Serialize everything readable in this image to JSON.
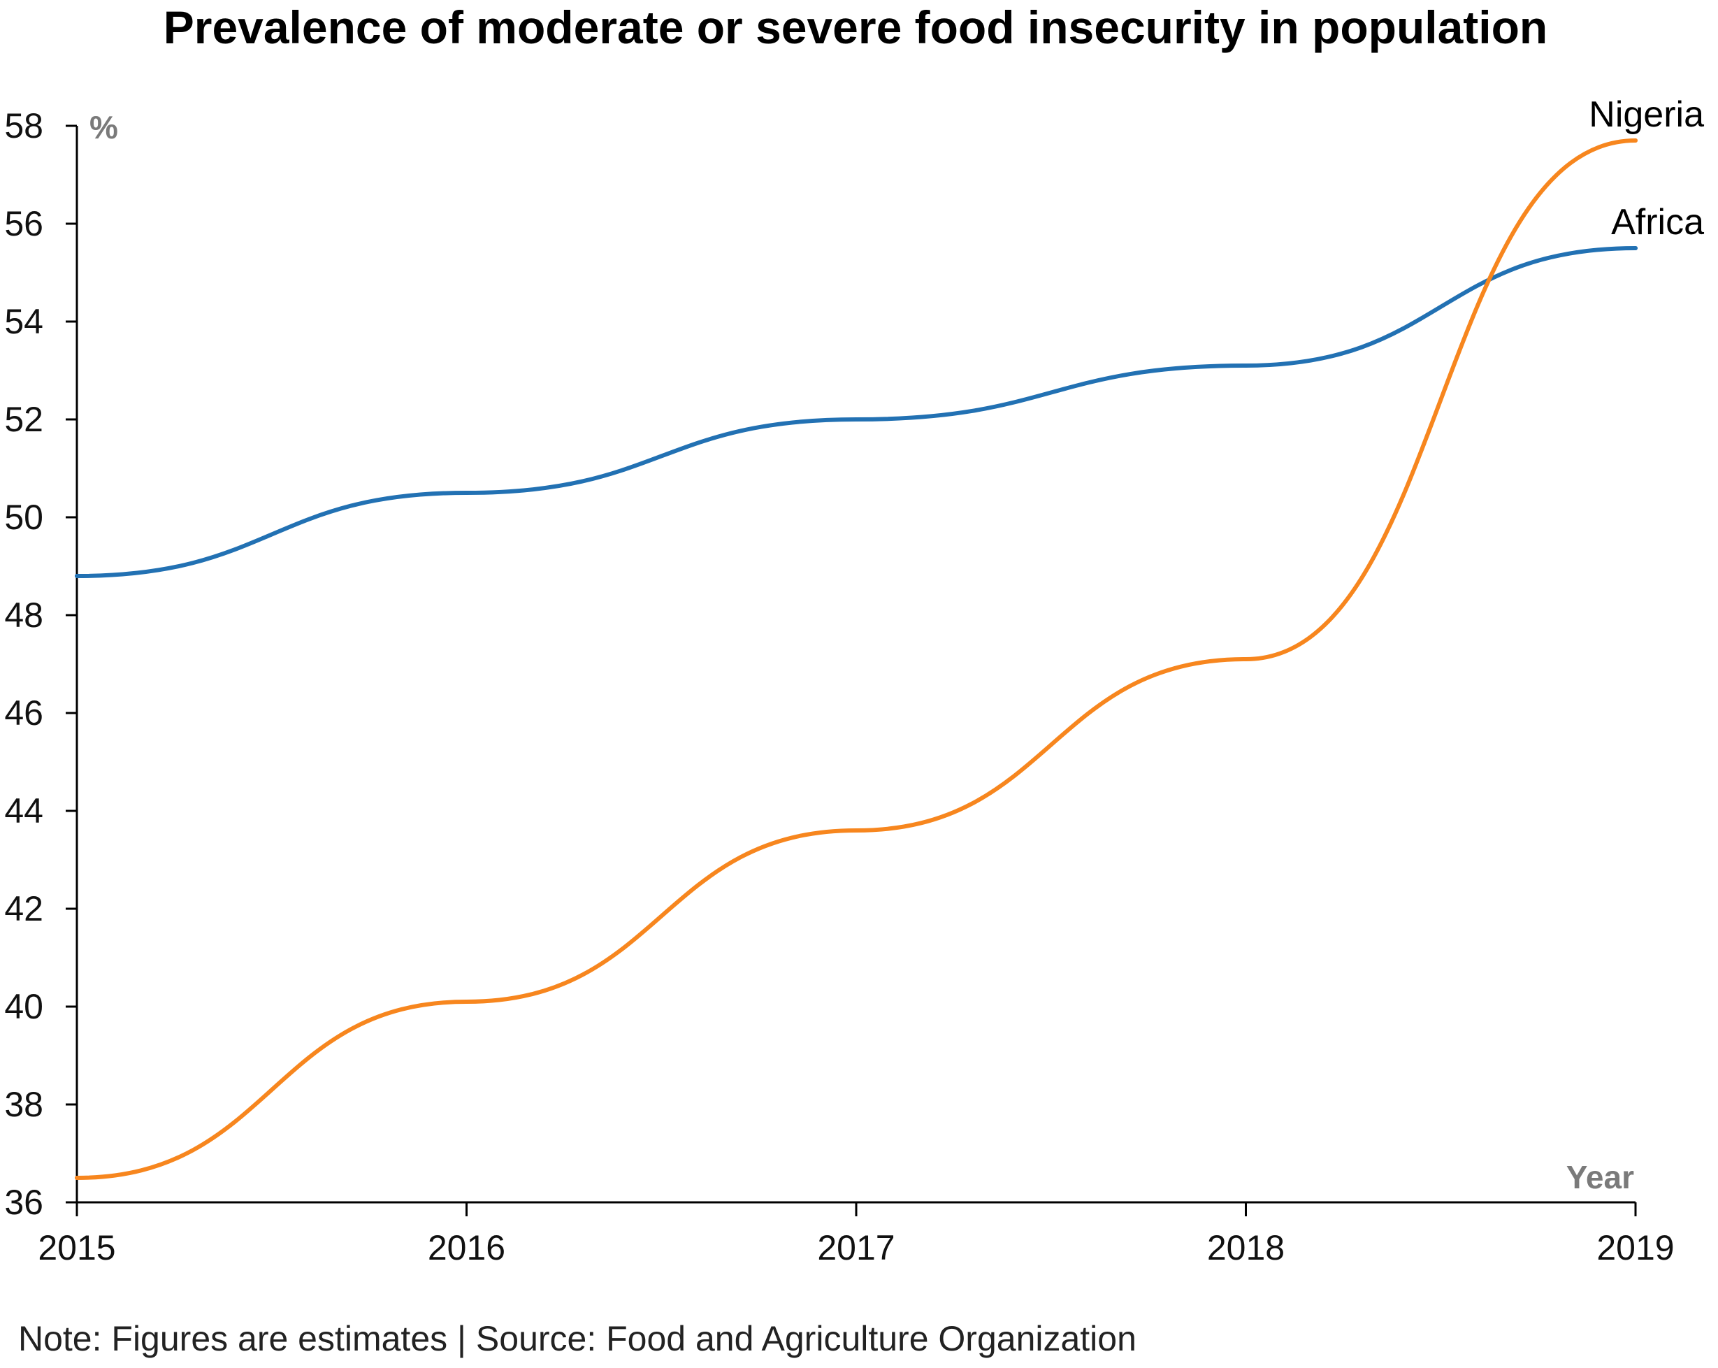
{
  "chart_data": {
    "type": "line",
    "title": "Prevalence of moderate or severe food insecurity in population",
    "ylabel": "%",
    "xlabel": "Year",
    "x": [
      "2015",
      "2016",
      "2017",
      "2018",
      "2019"
    ],
    "x_ticks": [
      "2015",
      "2016",
      "2017",
      "2018",
      "2019"
    ],
    "y_ticks": [
      "36",
      "38",
      "40",
      "42",
      "44",
      "46",
      "48",
      "50",
      "52",
      "54",
      "56",
      "58"
    ],
    "ylim": [
      36,
      58
    ],
    "grid": false,
    "series": [
      {
        "name": "Africa",
        "values": [
          48.8,
          50.5,
          52.0,
          53.1,
          55.5
        ],
        "color": "#2271b3"
      },
      {
        "name": "Nigeria",
        "values": [
          36.5,
          40.1,
          43.6,
          47.1,
          57.7
        ],
        "color": "#f7861e"
      }
    ],
    "note": "Note: Figures are estimates | Source: Food and Agriculture Organization"
  }
}
